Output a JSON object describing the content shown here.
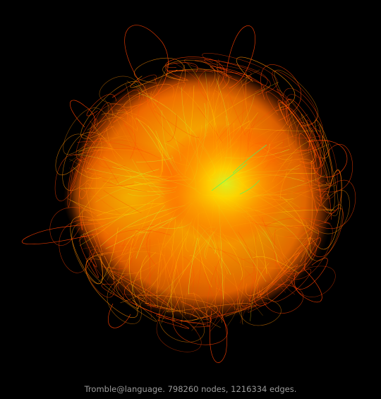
{
  "caption": {
    "text": "Tromble@language. 798260 nodes, 1216334 edges."
  },
  "graph": {
    "name": "Tromble@language",
    "node_count": 798260,
    "edge_count": 1216334,
    "background_color": "#000000",
    "caption_color": "#9a9a9a",
    "edge_colors": {
      "outer": "#ff4000",
      "mid": "#ff8c00",
      "inner": "#ffd000",
      "core": "#c8ff2a",
      "highlight": "#3cff6a"
    }
  }
}
